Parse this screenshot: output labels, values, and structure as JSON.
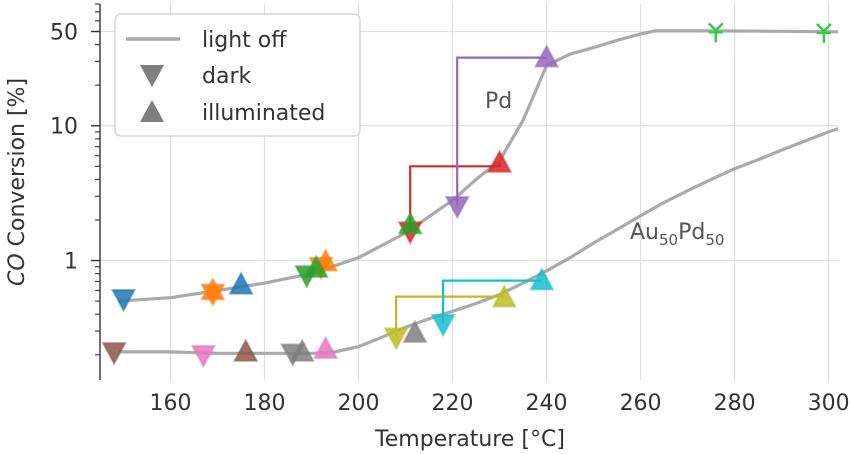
{
  "chart_data": {
    "type": "line",
    "xlabel": "Temperature [°C]",
    "ylabel_italic": "CO",
    "ylabel_rest": " Conversion [%]",
    "xlim": [
      145,
      302
    ],
    "ylim": [
      0.13,
      80
    ],
    "yscale": "log",
    "grid": true,
    "legend_position": "top-left",
    "x_ticks": [
      160,
      180,
      200,
      220,
      240,
      260,
      280,
      300
    ],
    "y_ticks": [
      1,
      10,
      50
    ],
    "legend": {
      "line_label": "light off",
      "dark_label": "dark",
      "illuminated_label": "illuminated"
    },
    "curve_labels": {
      "pd": "Pd",
      "au_base": "Au",
      "au_sub": "50",
      "pd_base": "Pd",
      "pd_sub": "50"
    },
    "colors": {
      "curve": "#aaaaaa",
      "legend_marker": "#7f7f7f"
    },
    "lightoff_curves": [
      {
        "name": "Pd",
        "points": [
          [
            149,
            0.5
          ],
          [
            160,
            0.53
          ],
          [
            170,
            0.6
          ],
          [
            180,
            0.68
          ],
          [
            190,
            0.8
          ],
          [
            200,
            1.05
          ],
          [
            210,
            1.6
          ],
          [
            220,
            2.8
          ],
          [
            225,
            4.0
          ],
          [
            230,
            5.5
          ],
          [
            235,
            11.0
          ],
          [
            240,
            28.0
          ],
          [
            245,
            34.0
          ],
          [
            250,
            38.0
          ],
          [
            255,
            43.0
          ],
          [
            260,
            48.0
          ],
          [
            263,
            50.5
          ],
          [
            275,
            50.5
          ],
          [
            290,
            50.2
          ],
          [
            302,
            49.8
          ]
        ]
      },
      {
        "name": "Au50Pd50",
        "points": [
          [
            149,
            0.21
          ],
          [
            160,
            0.21
          ],
          [
            170,
            0.205
          ],
          [
            180,
            0.205
          ],
          [
            190,
            0.205
          ],
          [
            195,
            0.21
          ],
          [
            200,
            0.23
          ],
          [
            205,
            0.27
          ],
          [
            210,
            0.32
          ],
          [
            215,
            0.37
          ],
          [
            220,
            0.42
          ],
          [
            225,
            0.48
          ],
          [
            230,
            0.56
          ],
          [
            235,
            0.68
          ],
          [
            240,
            0.84
          ],
          [
            245,
            1.05
          ],
          [
            250,
            1.35
          ],
          [
            255,
            1.7
          ],
          [
            260,
            2.15
          ],
          [
            265,
            2.7
          ],
          [
            270,
            3.3
          ],
          [
            275,
            4.0
          ],
          [
            280,
            4.8
          ],
          [
            285,
            5.6
          ],
          [
            290,
            6.6
          ],
          [
            295,
            7.7
          ],
          [
            300,
            9.0
          ],
          [
            302,
            9.5
          ]
        ]
      }
    ],
    "markers": [
      {
        "type": "dark",
        "color": "#1f77b4",
        "x": 150,
        "y": 0.52
      },
      {
        "type": "dark",
        "color": "#8c564b",
        "x": 148,
        "y": 0.21
      },
      {
        "type": "dark",
        "color": "#ff7f0e",
        "x": 169,
        "y": 0.57
      },
      {
        "type": "illuminated",
        "color": "#ff7f0e",
        "x": 169,
        "y": 0.6
      },
      {
        "type": "illuminated",
        "color": "#1f77b4",
        "x": 175,
        "y": 0.66
      },
      {
        "type": "dark",
        "color": "#e377c2",
        "x": 167,
        "y": 0.2
      },
      {
        "type": "illuminated",
        "color": "#8c564b",
        "x": 176,
        "y": 0.21
      },
      {
        "type": "dark",
        "color": "#7f7f7f",
        "x": 186,
        "y": 0.205
      },
      {
        "type": "illuminated",
        "color": "#7f7f7f",
        "x": 188,
        "y": 0.21
      },
      {
        "type": "illuminated",
        "color": "#e377c2",
        "x": 193,
        "y": 0.22
      },
      {
        "type": "dark",
        "color": "#2ca02c",
        "x": 189,
        "y": 0.78
      },
      {
        "type": "illuminated",
        "color": "#ff7f0e",
        "x": 193,
        "y": 0.98
      },
      {
        "type": "dark",
        "color": "#ff7f0e",
        "x": 192,
        "y": 0.9
      },
      {
        "type": "illuminated",
        "color": "#2ca02c",
        "x": 191,
        "y": 0.88
      },
      {
        "type": "dark",
        "color": "#d62728",
        "x": 211,
        "y": 1.65
      },
      {
        "type": "illuminated",
        "color": "#2ca02c",
        "x": 211,
        "y": 1.85
      },
      {
        "type": "illuminated",
        "color": "#d62728",
        "x": 230,
        "y": 5.3
      },
      {
        "type": "dark",
        "color": "#9467bd",
        "x": 221,
        "y": 2.55
      },
      {
        "type": "illuminated",
        "color": "#9467bd",
        "x": 240,
        "y": 32.0
      },
      {
        "type": "dark",
        "color": "#bcbd22",
        "x": 208,
        "y": 0.27
      },
      {
        "type": "illuminated",
        "color": "#7f7f7f",
        "x": 212,
        "y": 0.29
      },
      {
        "type": "illuminated",
        "color": "#bcbd22",
        "x": 231,
        "y": 0.53
      },
      {
        "type": "dark",
        "color": "#17becf",
        "x": 218,
        "y": 0.34
      },
      {
        "type": "illuminated",
        "color": "#17becf",
        "x": 239,
        "y": 0.71
      },
      {
        "type": "star",
        "color": "#2ecc40",
        "x": 276,
        "y": 51.0
      },
      {
        "type": "star",
        "color": "#2ecc40",
        "x": 299,
        "y": 50.5
      }
    ],
    "connectors": [
      {
        "color": "#d62728",
        "points": [
          [
            211,
            1.65
          ],
          [
            211,
            5.0
          ],
          [
            230,
            5.0
          ],
          [
            230,
            5.3
          ]
        ]
      },
      {
        "color": "#9467bd",
        "points": [
          [
            221,
            2.55
          ],
          [
            221,
            32.0
          ],
          [
            240,
            32.0
          ]
        ]
      },
      {
        "color": "#bcbd22",
        "points": [
          [
            208,
            0.27
          ],
          [
            208,
            0.54
          ],
          [
            231,
            0.54
          ]
        ]
      },
      {
        "color": "#17becf",
        "points": [
          [
            218,
            0.34
          ],
          [
            218,
            0.71
          ],
          [
            239,
            0.71
          ]
        ]
      }
    ]
  }
}
